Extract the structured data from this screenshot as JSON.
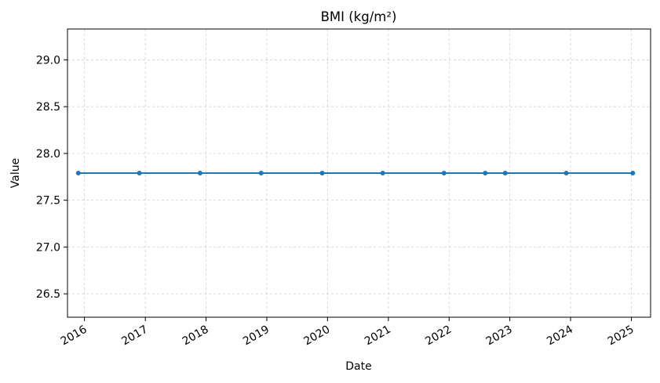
{
  "chart_data": {
    "type": "line",
    "title": "BMI (kg/m²)",
    "xlabel": "Date",
    "ylabel": "Value",
    "xlim": [
      "2015-09-21",
      "2025-04-26"
    ],
    "ylim": [
      26.25,
      29.33
    ],
    "x_ticks": [
      {
        "date": "2016-01-01",
        "label": "2016"
      },
      {
        "date": "2017-01-01",
        "label": "2017"
      },
      {
        "date": "2018-01-01",
        "label": "2018"
      },
      {
        "date": "2019-01-01",
        "label": "2019"
      },
      {
        "date": "2020-01-01",
        "label": "2020"
      },
      {
        "date": "2021-01-01",
        "label": "2021"
      },
      {
        "date": "2022-01-01",
        "label": "2022"
      },
      {
        "date": "2023-01-01",
        "label": "2023"
      },
      {
        "date": "2024-01-01",
        "label": "2024"
      },
      {
        "date": "2025-01-01",
        "label": "2025"
      }
    ],
    "y_ticks": [
      {
        "value": 26.5,
        "label": "26.5"
      },
      {
        "value": 27.0,
        "label": "27.0"
      },
      {
        "value": 27.5,
        "label": "27.5"
      },
      {
        "value": 28.0,
        "label": "28.0"
      },
      {
        "value": 28.5,
        "label": "28.5"
      },
      {
        "value": 29.0,
        "label": "29.0"
      }
    ],
    "grid": true,
    "series": [
      {
        "color": "#1f77b4",
        "points": [
          {
            "x": "2015-11-25",
            "y": 27.79
          },
          {
            "x": "2016-11-26",
            "y": 27.79
          },
          {
            "x": "2017-11-26",
            "y": 27.79
          },
          {
            "x": "2018-11-28",
            "y": 27.79
          },
          {
            "x": "2019-11-30",
            "y": 27.79
          },
          {
            "x": "2020-11-28",
            "y": 27.79
          },
          {
            "x": "2021-12-01",
            "y": 27.79
          },
          {
            "x": "2022-08-06",
            "y": 27.79
          },
          {
            "x": "2022-12-04",
            "y": 27.79
          },
          {
            "x": "2023-12-06",
            "y": 27.79
          },
          {
            "x": "2025-01-09",
            "y": 27.79
          }
        ]
      }
    ]
  }
}
